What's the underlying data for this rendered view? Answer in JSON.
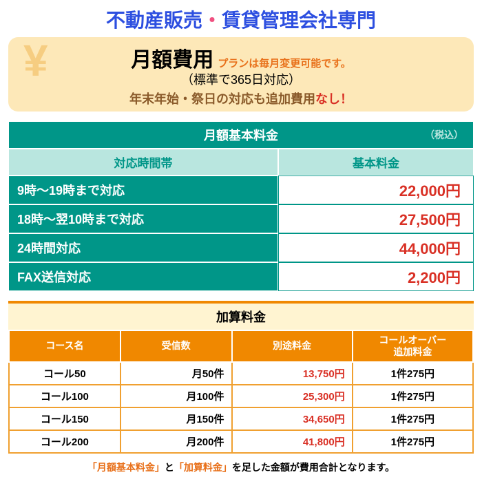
{
  "colors": {
    "title_blue": "#2d4fe0",
    "title_pink": "#f05080",
    "banner_bg": "#fde8b8",
    "yen": "#f4c26a",
    "orange": "#e8701a",
    "teal_dark": "#009688",
    "teal_light": "#b9e6df",
    "price_red": "#d93025",
    "cream": "#fff4d1",
    "t2_orange": "#f08800",
    "t2_border": "#f0a030",
    "brown": "#8a5a2a"
  },
  "title": "不動産販売・賃貸管理会社専門",
  "banner": {
    "main": "月額費用",
    "plan_note": "プランは毎月変更可能です。",
    "sub1": "（標準で365日対応）",
    "sub2": "年末年始・祭日の対応も追加費用",
    "nashi": "なし！"
  },
  "table1": {
    "title": "月額基本料金",
    "zeikomi": "（税込）",
    "col1": "対応時間帯",
    "col2": "基本料金",
    "rows": [
      {
        "label": "9時～19時まで対応",
        "price": "22,000円"
      },
      {
        "label": "18時～翌10時まで対応",
        "price": "27,500円"
      },
      {
        "label": "24時間対応",
        "price": "44,000円"
      },
      {
        "label": "FAX送信対応",
        "price": "2,200円"
      }
    ]
  },
  "table2": {
    "title": "加算料金",
    "cols": [
      "コース名",
      "受信数",
      "別途料金",
      "コールオーバー\n追加料金"
    ],
    "rows": [
      {
        "c1": "コール50",
        "c2": "月50件",
        "c3": "13,750円",
        "c4": "1件275円"
      },
      {
        "c1": "コール100",
        "c2": "月100件",
        "c3": "25,300円",
        "c4": "1件275円"
      },
      {
        "c1": "コール150",
        "c2": "月150件",
        "c3": "34,650円",
        "c4": "1件275円"
      },
      {
        "c1": "コール200",
        "c2": "月200件",
        "c3": "41,800円",
        "c4": "1件275円"
      }
    ]
  },
  "footnote": {
    "p1": "「月額基本料金」",
    "mid": "と",
    "p2": "「加算料金」",
    "rest": "を足した金額が費用合計となります。"
  }
}
